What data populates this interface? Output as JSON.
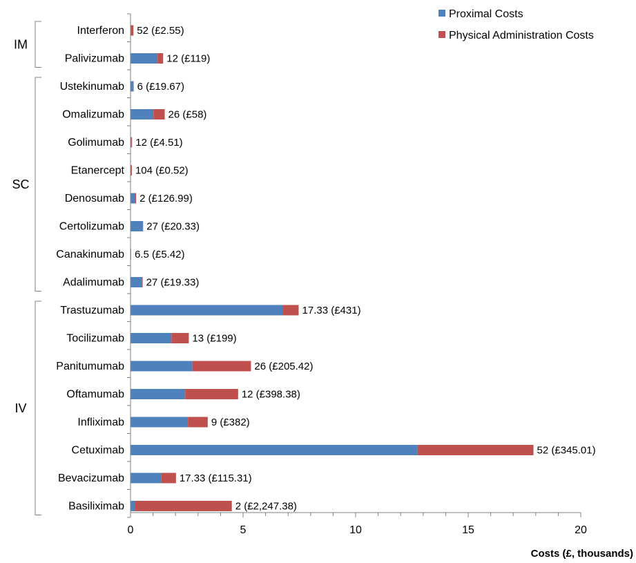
{
  "chart_data": {
    "type": "bar",
    "orientation": "horizontal",
    "stacked": true,
    "xlabel": "Costs (£, thousands)",
    "ylabel": "",
    "xlim": [
      0,
      20
    ],
    "xticks": [
      "0",
      "5",
      "10",
      "15",
      "20"
    ],
    "grid": false,
    "legend_position": "top-right",
    "colors": {
      "proximal": "#4F81BD",
      "physical": "#C0504D",
      "axis": "#808080"
    },
    "series": [
      {
        "name": "Proximal Costs",
        "key": "proximal"
      },
      {
        "name": "Physical Administration Costs",
        "key": "physical"
      }
    ],
    "groups": [
      {
        "name": "IM",
        "categories": [
          "Interferon",
          "Palivizumab"
        ]
      },
      {
        "name": "SC",
        "categories": [
          "Ustekinumab",
          "Omalizumab",
          "Golimumab",
          "Etanercept",
          "Denosumab",
          "Certolizumab",
          "Canakinumab",
          "Adalimumab"
        ]
      },
      {
        "name": "IV",
        "categories": [
          "Trastuzumab",
          "Tocilizumab",
          "Panitumumab",
          "Oftamumab",
          "Infliximab",
          "Cetuximab",
          "Bevacizumab",
          "Basiliximab"
        ]
      }
    ],
    "rows": [
      {
        "label": "Interferon",
        "proximal": 0.03,
        "physical": 0.1,
        "annotation": "52 (£2.55)"
      },
      {
        "label": "Palivizumab",
        "proximal": 1.2,
        "physical": 0.25,
        "annotation": "12 (£119)"
      },
      {
        "label": "Ustekinumab",
        "proximal": 0.12,
        "physical": 0.02,
        "annotation": "6 (£19.67)"
      },
      {
        "label": "Omalizumab",
        "proximal": 1.02,
        "physical": 0.5,
        "annotation": "26 (£58)"
      },
      {
        "label": "Golimumab",
        "proximal": 0.04,
        "physical": 0.03,
        "annotation": "12 (£4.51)"
      },
      {
        "label": "Etanercept",
        "proximal": 0.03,
        "physical": 0.03,
        "annotation": "104 (£0.52)"
      },
      {
        "label": "Denosumab",
        "proximal": 0.2,
        "physical": 0.05,
        "annotation": "2 (£126.99)"
      },
      {
        "label": "Certolizumab",
        "proximal": 0.55,
        "physical": 0.01,
        "annotation": "27 (£20.33)"
      },
      {
        "label": "Canakinumab",
        "proximal": 0.02,
        "physical": 0.01,
        "annotation": "6.5 (£5.42)"
      },
      {
        "label": "Adalimumab",
        "proximal": 0.52,
        "physical": 0.02,
        "annotation": "27 (£19.33)"
      },
      {
        "label": "Trastuzumab",
        "proximal": 6.75,
        "physical": 0.72,
        "annotation": "17.33 (£431)"
      },
      {
        "label": "Tocilizumab",
        "proximal": 1.82,
        "physical": 0.77,
        "annotation": "13 (£199)"
      },
      {
        "label": "Panitumumab",
        "proximal": 2.75,
        "physical": 2.6,
        "annotation": "26 (£205.42)"
      },
      {
        "label": "Oftamumab",
        "proximal": 2.43,
        "physical": 2.35,
        "annotation": "12 (£398.38)"
      },
      {
        "label": "Infliximab",
        "proximal": 2.55,
        "physical": 0.88,
        "annotation": "9 (£382)"
      },
      {
        "label": "Cetuximab",
        "proximal": 12.75,
        "physical": 5.15,
        "annotation": "52 (£345.01)"
      },
      {
        "label": "Bevacizumab",
        "proximal": 1.37,
        "physical": 0.65,
        "annotation": "17.33 (£115.31)"
      },
      {
        "label": "Basiliximab",
        "proximal": 0.2,
        "physical": 4.3,
        "annotation": "2 (£2,247.38)"
      }
    ]
  }
}
